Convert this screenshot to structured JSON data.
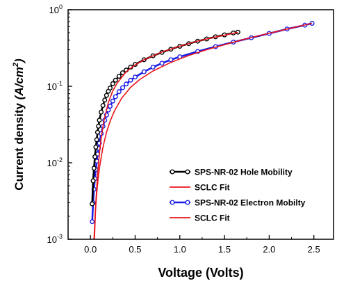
{
  "chart_data": {
    "type": "line",
    "title": "",
    "xlabel": "Voltage (Volts)",
    "ylabel": "Current density (A/cm²)",
    "ylabel_main": "Current density ",
    "ylabel_unit": "(A/cm",
    "ylabel_sup": "2",
    "ylabel_close": ")",
    "x_scale": "linear",
    "y_scale": "log",
    "xlim": [
      -0.25,
      2.72
    ],
    "ylim": [
      0.001,
      1
    ],
    "x_ticks": [
      0.0,
      0.5,
      1.0,
      1.5,
      2.0,
      2.5
    ],
    "x_tick_labels": [
      "0.0",
      "0.5",
      "1.0",
      "1.5",
      "2.0",
      "2.5"
    ],
    "y_ticks": [
      0.001,
      0.01,
      0.1,
      1
    ],
    "y_tick_labels": [
      {
        "base": "10",
        "exp": "-3"
      },
      {
        "base": "10",
        "exp": "-2"
      },
      {
        "base": "10",
        "exp": "-1"
      },
      {
        "base": "10",
        "exp": "0"
      }
    ],
    "grid": false,
    "legend_position": "bottom-right",
    "series": [
      {
        "name": "SPS-NR-02 Hole Mobility",
        "style": "line-markers",
        "color": "#000000",
        "x": [
          0.02,
          0.03,
          0.04,
          0.05,
          0.06,
          0.07,
          0.08,
          0.09,
          0.1,
          0.12,
          0.14,
          0.16,
          0.18,
          0.2,
          0.22,
          0.25,
          0.28,
          0.32,
          0.36,
          0.4,
          0.45,
          0.5,
          0.6,
          0.7,
          0.8,
          0.9,
          1.0,
          1.1,
          1.2,
          1.3,
          1.4,
          1.5,
          1.6,
          1.65
        ],
        "y": [
          0.0029,
          0.0058,
          0.0085,
          0.012,
          0.016,
          0.02,
          0.025,
          0.03,
          0.036,
          0.046,
          0.056,
          0.066,
          0.076,
          0.086,
          0.095,
          0.108,
          0.12,
          0.135,
          0.15,
          0.163,
          0.178,
          0.193,
          0.222,
          0.25,
          0.277,
          0.305,
          0.333,
          0.36,
          0.388,
          0.415,
          0.443,
          0.47,
          0.497,
          0.51
        ]
      },
      {
        "name": "SCLC Fit",
        "style": "line",
        "color": "#e8141b",
        "x": [
          0.045,
          0.06,
          0.08,
          0.1,
          0.12,
          0.15,
          0.2,
          0.25,
          0.3,
          0.4,
          0.5,
          0.6,
          0.8,
          1.0,
          1.2,
          1.4,
          1.6,
          1.65
        ],
        "y": [
          0.001,
          0.003,
          0.007,
          0.013,
          0.021,
          0.035,
          0.061,
          0.087,
          0.11,
          0.155,
          0.19,
          0.222,
          0.28,
          0.334,
          0.39,
          0.44,
          0.492,
          0.505
        ]
      },
      {
        "name": "SPS-NR-02 Electron Mobilty",
        "style": "line-markers",
        "color": "#1b1ee6",
        "x": [
          0.02,
          0.03,
          0.04,
          0.05,
          0.06,
          0.07,
          0.08,
          0.09,
          0.1,
          0.12,
          0.14,
          0.16,
          0.18,
          0.2,
          0.22,
          0.25,
          0.28,
          0.32,
          0.36,
          0.4,
          0.45,
          0.5,
          0.6,
          0.7,
          0.8,
          0.9,
          1.0,
          1.2,
          1.4,
          1.6,
          1.8,
          2.0,
          2.2,
          2.4,
          2.48
        ],
        "y": [
          0.0017,
          0.003,
          0.0045,
          0.0062,
          0.0082,
          0.0105,
          0.013,
          0.0155,
          0.018,
          0.024,
          0.03,
          0.036,
          0.042,
          0.049,
          0.055,
          0.064,
          0.073,
          0.085,
          0.096,
          0.107,
          0.12,
          0.132,
          0.155,
          0.178,
          0.2,
          0.222,
          0.243,
          0.285,
          0.33,
          0.378,
          0.43,
          0.49,
          0.56,
          0.63,
          0.665
        ]
      },
      {
        "name": "SCLC Fit",
        "style": "line",
        "color": "#e8141b",
        "x": [
          0.04,
          0.055,
          0.07,
          0.09,
          0.11,
          0.14,
          0.18,
          0.22,
          0.27,
          0.35,
          0.45,
          0.55,
          0.7,
          0.9,
          1.1,
          1.3,
          1.5,
          1.7,
          1.9,
          2.1,
          2.3,
          2.48
        ],
        "y": [
          0.001,
          0.0023,
          0.004,
          0.0068,
          0.01,
          0.016,
          0.025,
          0.035,
          0.048,
          0.07,
          0.097,
          0.122,
          0.158,
          0.205,
          0.252,
          0.3,
          0.35,
          0.405,
          0.462,
          0.525,
          0.595,
          0.665
        ]
      }
    ]
  }
}
